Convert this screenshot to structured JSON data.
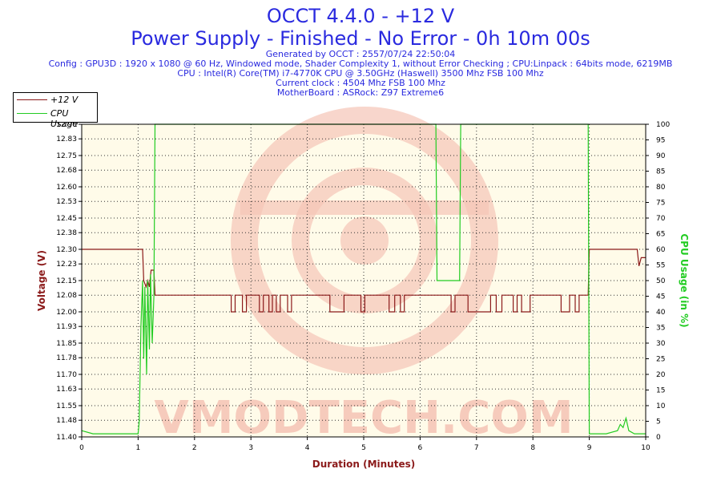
{
  "header": {
    "title": "OCCT 4.4.0 - +12 V",
    "subtitle": "Power Supply - Finished - No Error - 0h 10m 00s",
    "info": [
      "Generated by OCCT : 2557/07/24 22:50:04",
      "Config : GPU3D : 1920 x 1080 @ 60 Hz, Windowed mode, Shader Complexity 1, without Error Checking ; CPU:Linpack : 64bits mode, 6219MB",
      "CPU : Intel(R) Core(TM) i7-4770K CPU @ 3.50GHz (Haswell) 3500 Mhz FSB 100 Mhz",
      "Current clock : 4504 Mhz FSB 100 Mhz",
      "MotherBoard : ASRock: Z97 Extreme6"
    ]
  },
  "legend": [
    {
      "label": "+12 V",
      "color": "#8b1a1a"
    },
    {
      "label": "CPU Usage",
      "color": "#22cc22"
    }
  ],
  "watermark": "VMODTECH.COM",
  "chart_data": {
    "type": "line",
    "xlabel": "Duration (Minutes)",
    "ylabel_left": "Voltage (V)",
    "ylabel_right": "CPU Usage (in %)",
    "xlim": [
      0,
      10
    ],
    "ylim_left": [
      11.4,
      12.9
    ],
    "ylim_right": [
      0,
      100
    ],
    "x_ticks": [
      "0",
      "1",
      "2",
      "3",
      "4",
      "5",
      "6",
      "7",
      "8",
      "9",
      "10"
    ],
    "y_left_ticks": [
      "11.40",
      "11.48",
      "11.55",
      "11.63",
      "11.70",
      "11.78",
      "11.85",
      "11.93",
      "12.00",
      "12.08",
      "12.15",
      "12.23",
      "12.30",
      "12.38",
      "12.45",
      "12.53",
      "12.60",
      "12.68",
      "12.75",
      "12.83",
      "12.90"
    ],
    "y_right_ticks": [
      "0",
      "5",
      "10",
      "15",
      "20",
      "25",
      "30",
      "35",
      "40",
      "45",
      "50",
      "55",
      "60",
      "65",
      "70",
      "75",
      "80",
      "85",
      "90",
      "95",
      "100"
    ],
    "grid": true,
    "series": [
      {
        "name": "+12 V",
        "axis": "left",
        "color": "#8b1a1a",
        "points": [
          [
            0,
            12.3
          ],
          [
            1.08,
            12.3
          ],
          [
            1.1,
            12.15
          ],
          [
            1.14,
            12.12
          ],
          [
            1.17,
            12.15
          ],
          [
            1.2,
            12.12
          ],
          [
            1.23,
            12.2
          ],
          [
            1.28,
            12.2
          ],
          [
            1.3,
            12.08
          ],
          [
            2.65,
            12.08
          ],
          [
            2.65,
            12.0
          ],
          [
            2.72,
            12.0
          ],
          [
            2.72,
            12.08
          ],
          [
            2.85,
            12.08
          ],
          [
            2.85,
            12.0
          ],
          [
            2.92,
            12.0
          ],
          [
            2.92,
            12.08
          ],
          [
            3.15,
            12.08
          ],
          [
            3.15,
            12.0
          ],
          [
            3.22,
            12.0
          ],
          [
            3.22,
            12.08
          ],
          [
            3.32,
            12.08
          ],
          [
            3.32,
            12.0
          ],
          [
            3.38,
            12.0
          ],
          [
            3.38,
            12.08
          ],
          [
            3.45,
            12.08
          ],
          [
            3.45,
            12.0
          ],
          [
            3.52,
            12.0
          ],
          [
            3.52,
            12.08
          ],
          [
            3.65,
            12.08
          ],
          [
            3.65,
            12.0
          ],
          [
            3.72,
            12.0
          ],
          [
            3.72,
            12.08
          ],
          [
            4.4,
            12.08
          ],
          [
            4.4,
            12.0
          ],
          [
            4.65,
            12.0
          ],
          [
            4.65,
            12.08
          ],
          [
            4.95,
            12.08
          ],
          [
            4.95,
            12.0
          ],
          [
            5.02,
            12.0
          ],
          [
            5.02,
            12.08
          ],
          [
            5.45,
            12.08
          ],
          [
            5.45,
            12.0
          ],
          [
            5.55,
            12.0
          ],
          [
            5.55,
            12.08
          ],
          [
            5.65,
            12.08
          ],
          [
            5.65,
            12.0
          ],
          [
            5.72,
            12.0
          ],
          [
            5.72,
            12.08
          ],
          [
            6.55,
            12.08
          ],
          [
            6.55,
            12.0
          ],
          [
            6.62,
            12.0
          ],
          [
            6.62,
            12.08
          ],
          [
            6.85,
            12.08
          ],
          [
            6.85,
            12.0
          ],
          [
            7.25,
            12.0
          ],
          [
            7.25,
            12.08
          ],
          [
            7.35,
            12.08
          ],
          [
            7.35,
            12.0
          ],
          [
            7.45,
            12.0
          ],
          [
            7.45,
            12.08
          ],
          [
            7.65,
            12.08
          ],
          [
            7.65,
            12.0
          ],
          [
            7.72,
            12.0
          ],
          [
            7.72,
            12.08
          ],
          [
            7.8,
            12.08
          ],
          [
            7.8,
            12.0
          ],
          [
            7.95,
            12.0
          ],
          [
            7.95,
            12.08
          ],
          [
            8.5,
            12.08
          ],
          [
            8.5,
            12.0
          ],
          [
            8.65,
            12.0
          ],
          [
            8.65,
            12.08
          ],
          [
            8.75,
            12.08
          ],
          [
            8.75,
            12.0
          ],
          [
            8.82,
            12.0
          ],
          [
            8.82,
            12.08
          ],
          [
            8.98,
            12.08
          ],
          [
            9.0,
            12.3
          ],
          [
            9.85,
            12.3
          ],
          [
            9.88,
            12.22
          ],
          [
            9.92,
            12.26
          ],
          [
            10,
            12.26
          ]
        ]
      },
      {
        "name": "CPU Usage",
        "axis": "right",
        "color": "#22cc22",
        "points": [
          [
            0,
            2
          ],
          [
            0.2,
            1
          ],
          [
            0.4,
            1
          ],
          [
            0.6,
            1
          ],
          [
            0.8,
            1
          ],
          [
            1.0,
            1
          ],
          [
            1.02,
            5
          ],
          [
            1.05,
            35
          ],
          [
            1.08,
            50
          ],
          [
            1.1,
            25
          ],
          [
            1.12,
            48
          ],
          [
            1.15,
            20
          ],
          [
            1.17,
            50
          ],
          [
            1.2,
            28
          ],
          [
            1.22,
            52
          ],
          [
            1.25,
            30
          ],
          [
            1.28,
            45
          ],
          [
            1.3,
            100
          ],
          [
            6.28,
            100
          ],
          [
            6.3,
            50
          ],
          [
            6.6,
            50
          ],
          [
            6.7,
            50
          ],
          [
            6.72,
            100
          ],
          [
            8.98,
            100
          ],
          [
            9.0,
            1
          ],
          [
            9.3,
            1
          ],
          [
            9.5,
            2
          ],
          [
            9.55,
            4
          ],
          [
            9.6,
            3
          ],
          [
            9.65,
            6
          ],
          [
            9.7,
            2
          ],
          [
            9.8,
            1
          ],
          [
            10,
            1
          ]
        ]
      }
    ]
  }
}
